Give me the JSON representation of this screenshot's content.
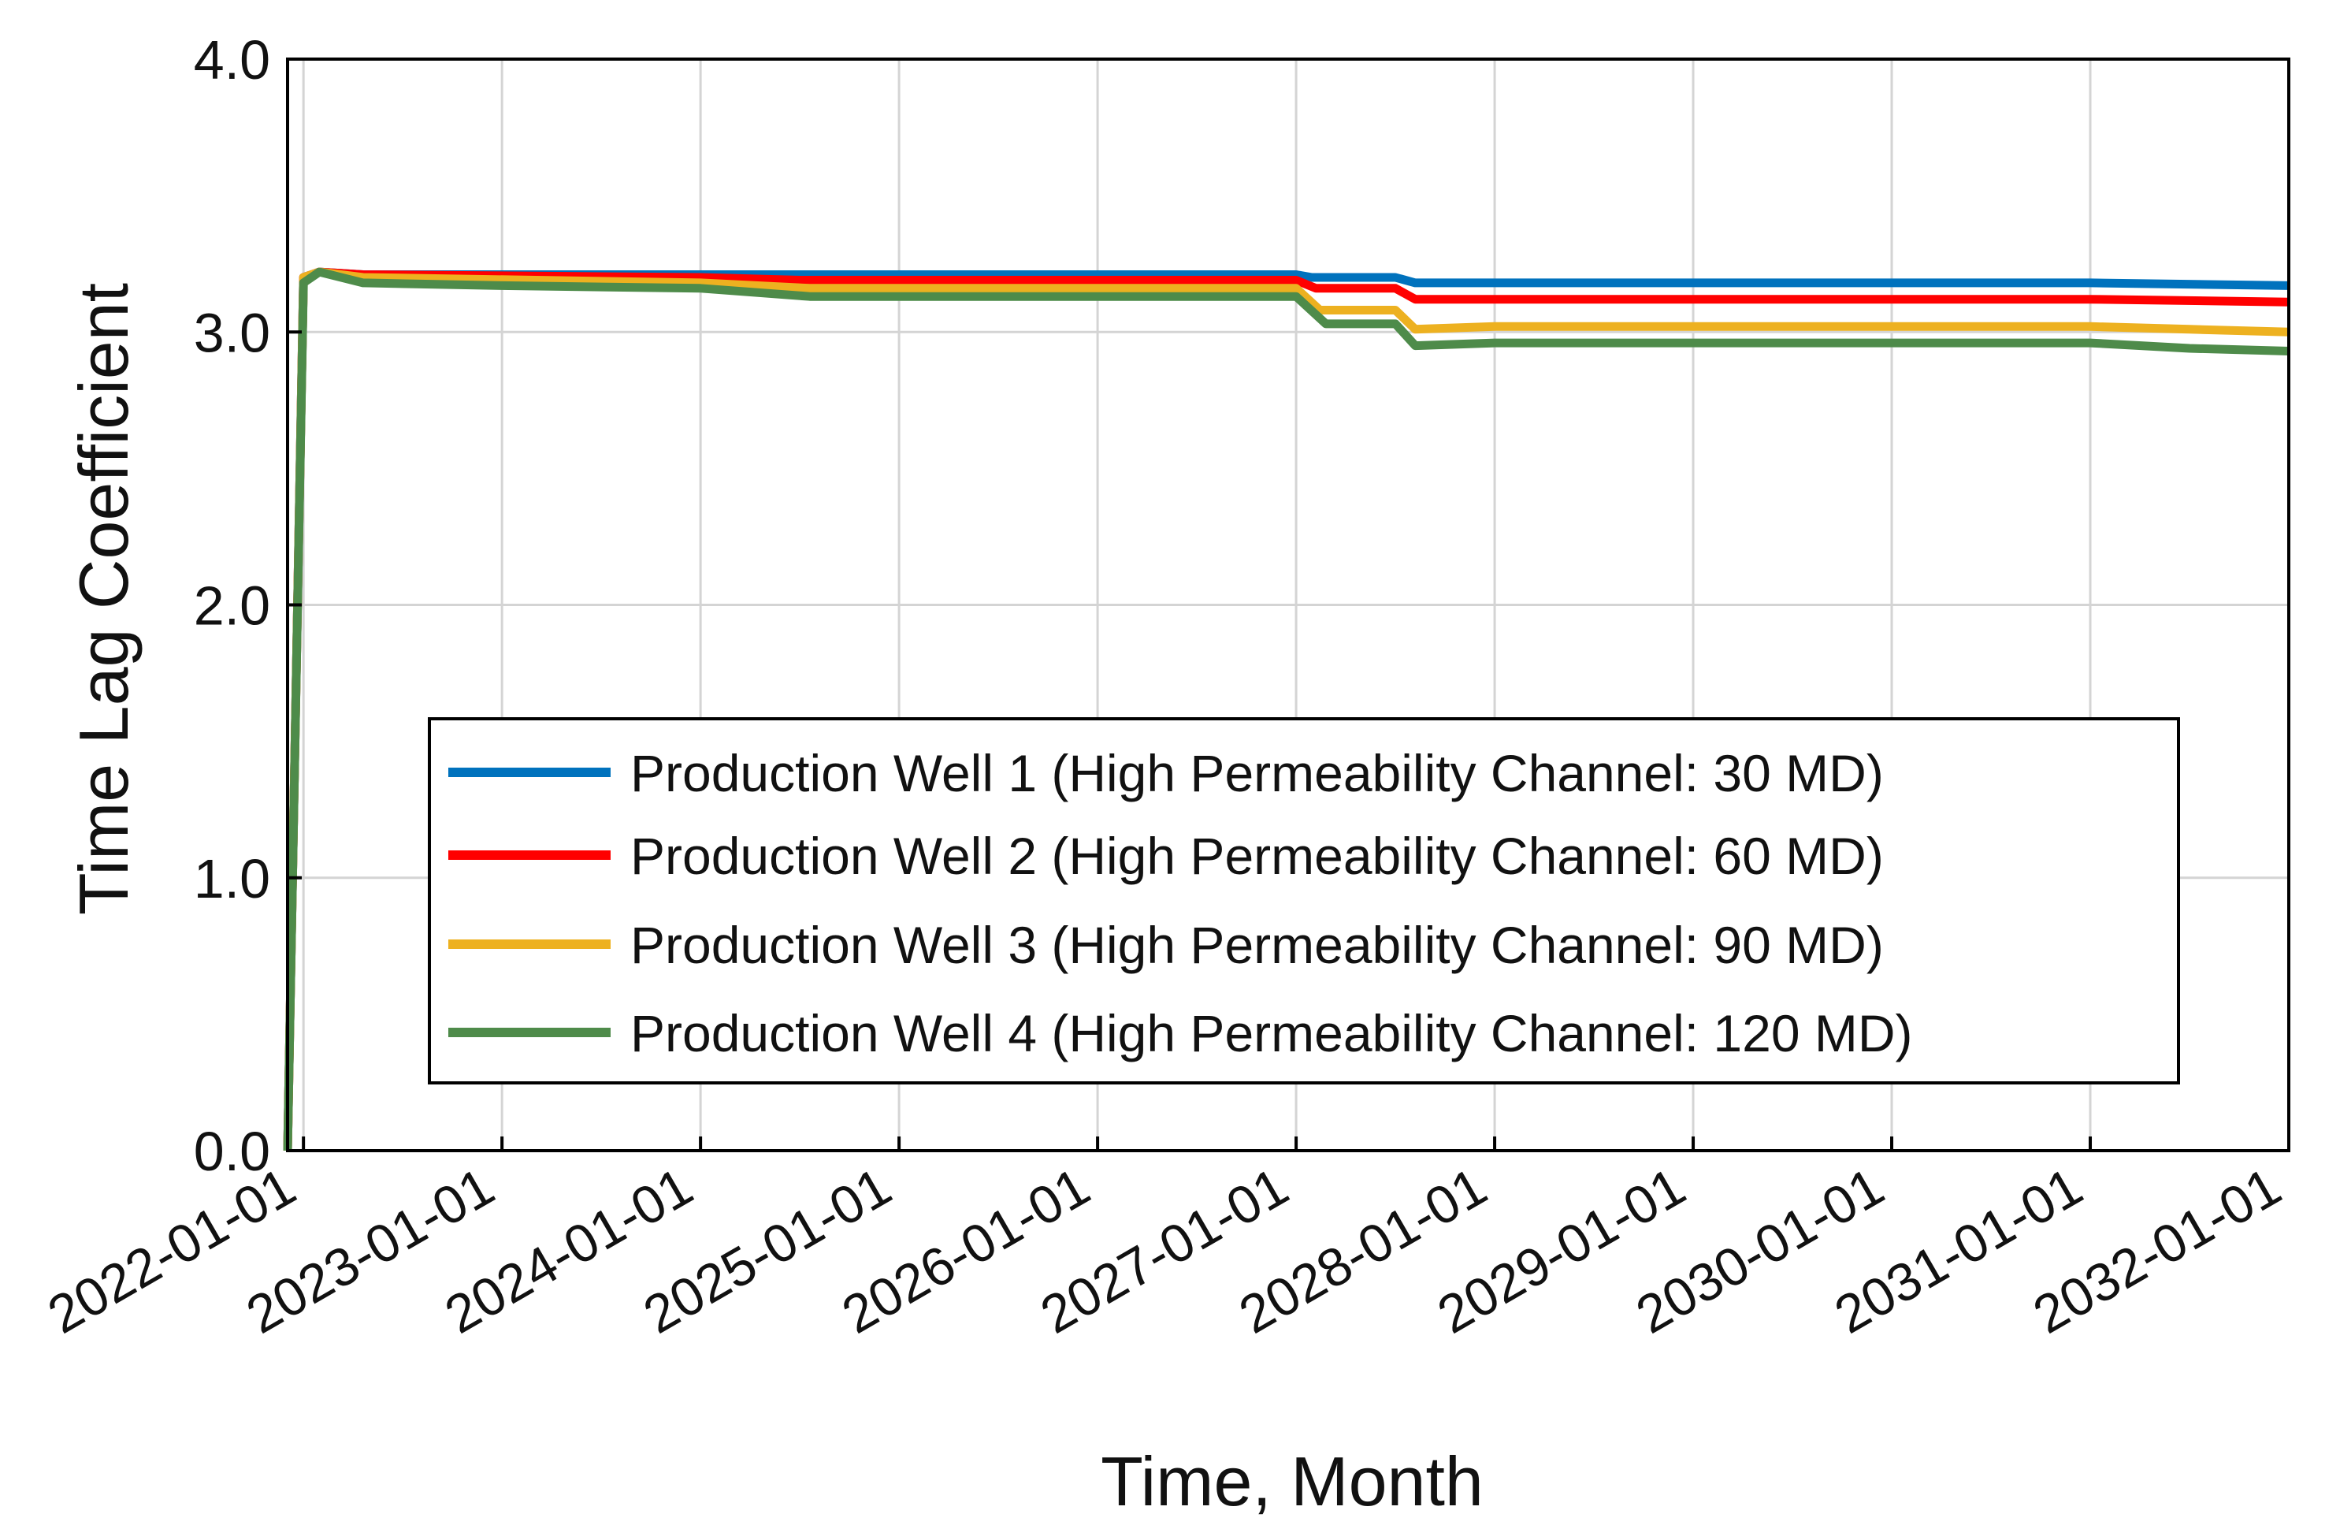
{
  "chart_data": {
    "type": "line",
    "title": "",
    "xlabel": "Time, Month",
    "ylabel": "Time Lag Coefficient",
    "ylim": [
      0,
      4
    ],
    "yticks": [
      "0.0",
      "1.0",
      "2.0",
      "3.0",
      "4.0"
    ],
    "xlim": [
      2021.92,
      2032.0
    ],
    "xtick_labels": [
      "2022-01-01",
      "2023-01-01",
      "2024-01-01",
      "2025-01-01",
      "2026-01-01",
      "2027-01-01",
      "2028-01-01",
      "2029-01-01",
      "2030-01-01",
      "2031-01-01",
      "2032-01-01"
    ],
    "xtick_values": [
      2022,
      2023,
      2024,
      2025,
      2026,
      2027,
      2028,
      2029,
      2030,
      2031,
      2032
    ],
    "grid": true,
    "legend_position": "lower-center",
    "series": [
      {
        "name": "Production Well 1 (High Permeability Channel: 30 MD)",
        "color": "#0072BD",
        "points": [
          [
            2021.92,
            0.0
          ],
          [
            2022.0,
            3.2
          ],
          [
            2022.08,
            3.22
          ],
          [
            2022.3,
            3.21
          ],
          [
            2024.0,
            3.21
          ],
          [
            2027.0,
            3.21
          ],
          [
            2027.08,
            3.2
          ],
          [
            2027.5,
            3.2
          ],
          [
            2027.6,
            3.18
          ],
          [
            2029.0,
            3.18
          ],
          [
            2031.0,
            3.18
          ],
          [
            2032.0,
            3.17
          ]
        ]
      },
      {
        "name": "Production Well 2 (High Permeability Channel: 60 MD)",
        "color": "#FF0000",
        "points": [
          [
            2021.92,
            0.0
          ],
          [
            2022.0,
            3.2
          ],
          [
            2022.08,
            3.22
          ],
          [
            2022.3,
            3.21
          ],
          [
            2024.0,
            3.2
          ],
          [
            2024.5,
            3.19
          ],
          [
            2027.0,
            3.19
          ],
          [
            2027.1,
            3.16
          ],
          [
            2027.5,
            3.16
          ],
          [
            2027.6,
            3.12
          ],
          [
            2028.0,
            3.12
          ],
          [
            2031.0,
            3.12
          ],
          [
            2032.0,
            3.11
          ]
        ]
      },
      {
        "name": "Production Well 3 (High Permeability Channel: 90 MD)",
        "color": "#EDB120",
        "points": [
          [
            2021.92,
            0.0
          ],
          [
            2022.0,
            3.2
          ],
          [
            2022.08,
            3.22
          ],
          [
            2022.3,
            3.2
          ],
          [
            2024.0,
            3.18
          ],
          [
            2024.55,
            3.16
          ],
          [
            2027.0,
            3.16
          ],
          [
            2027.12,
            3.08
          ],
          [
            2027.5,
            3.08
          ],
          [
            2027.6,
            3.01
          ],
          [
            2028.0,
            3.02
          ],
          [
            2031.0,
            3.02
          ],
          [
            2031.5,
            3.01
          ],
          [
            2032.0,
            3.0
          ]
        ]
      },
      {
        "name": "Production Well 4 (High Permeability Channel: 120 MD)",
        "color": "#4E8B4A",
        "points": [
          [
            2021.92,
            0.0
          ],
          [
            2022.0,
            3.18
          ],
          [
            2022.08,
            3.22
          ],
          [
            2022.3,
            3.18
          ],
          [
            2023.0,
            3.17
          ],
          [
            2024.0,
            3.16
          ],
          [
            2024.55,
            3.13
          ],
          [
            2027.0,
            3.13
          ],
          [
            2027.15,
            3.03
          ],
          [
            2027.5,
            3.03
          ],
          [
            2027.6,
            2.95
          ],
          [
            2028.0,
            2.96
          ],
          [
            2031.0,
            2.96
          ],
          [
            2031.5,
            2.94
          ],
          [
            2032.0,
            2.93
          ]
        ]
      }
    ]
  }
}
